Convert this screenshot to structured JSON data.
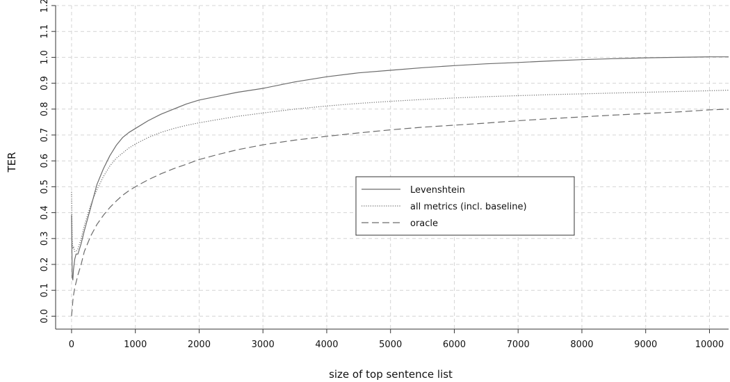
{
  "chart_data": {
    "type": "line",
    "xlabel": "size of top sentence list",
    "ylabel": "TER",
    "xlim": [
      -250,
      10300
    ],
    "ylim": [
      -0.05,
      1.2
    ],
    "x_ticks": [
      0,
      1000,
      2000,
      3000,
      4000,
      5000,
      6000,
      7000,
      8000,
      9000,
      10000
    ],
    "x_tick_labels": [
      "0",
      "1000",
      "2000",
      "3000",
      "4000",
      "5000",
      "6000",
      "7000",
      "8000",
      "9000",
      "10000"
    ],
    "y_ticks": [
      0.0,
      0.1,
      0.2,
      0.3,
      0.4,
      0.5,
      0.6,
      0.7,
      0.8,
      0.9,
      1.0,
      1.1,
      1.2
    ],
    "y_tick_labels": [
      "0.0",
      "0.1",
      "0.2",
      "0.3",
      "0.4",
      "0.5",
      "0.6",
      "0.7",
      "0.8",
      "0.9",
      "1.0",
      "1.1",
      "1.2"
    ],
    "grid": true,
    "legend_position": "center-right",
    "series": [
      {
        "name": "Levenshtein",
        "style": "solid",
        "color": "#6a6a6a",
        "x": [
          0,
          10,
          20,
          30,
          50,
          70,
          100,
          150,
          200,
          300,
          400,
          500,
          600,
          700,
          800,
          900,
          1000,
          1200,
          1400,
          1600,
          1800,
          2000,
          2300,
          2600,
          3000,
          3500,
          4000,
          4500,
          5000,
          5500,
          6000,
          6500,
          7000,
          7500,
          8000,
          8500,
          9000,
          9500,
          10000,
          10300
        ],
        "y": [
          0.39,
          0.15,
          0.14,
          0.18,
          0.22,
          0.24,
          0.24,
          0.28,
          0.33,
          0.42,
          0.51,
          0.57,
          0.62,
          0.66,
          0.69,
          0.71,
          0.725,
          0.755,
          0.78,
          0.8,
          0.82,
          0.835,
          0.85,
          0.865,
          0.88,
          0.905,
          0.925,
          0.94,
          0.95,
          0.96,
          0.968,
          0.975,
          0.98,
          0.986,
          0.991,
          0.995,
          0.998,
          1.0,
          1.002,
          1.002
        ]
      },
      {
        "name": "all metrics (incl. baseline)",
        "style": "dotted",
        "color": "#6a6a6a",
        "x": [
          0,
          10,
          20,
          30,
          50,
          70,
          100,
          150,
          200,
          300,
          400,
          500,
          600,
          700,
          800,
          900,
          1000,
          1200,
          1400,
          1600,
          1800,
          2000,
          2300,
          2600,
          3000,
          3500,
          4000,
          4500,
          5000,
          5500,
          6000,
          6500,
          7000,
          7500,
          8000,
          8500,
          9000,
          9500,
          10000,
          10300
        ],
        "y": [
          0.48,
          0.3,
          0.26,
          0.27,
          0.25,
          0.25,
          0.26,
          0.3,
          0.35,
          0.43,
          0.49,
          0.54,
          0.58,
          0.61,
          0.63,
          0.65,
          0.665,
          0.69,
          0.71,
          0.725,
          0.737,
          0.747,
          0.76,
          0.772,
          0.785,
          0.8,
          0.812,
          0.822,
          0.83,
          0.837,
          0.843,
          0.848,
          0.852,
          0.856,
          0.859,
          0.862,
          0.865,
          0.868,
          0.871,
          0.873
        ]
      },
      {
        "name": "oracle",
        "style": "dashed",
        "color": "#6a6a6a",
        "x": [
          0,
          10,
          20,
          30,
          50,
          70,
          100,
          150,
          200,
          300,
          400,
          500,
          600,
          700,
          800,
          900,
          1000,
          1200,
          1400,
          1600,
          1800,
          2000,
          2300,
          2600,
          3000,
          3500,
          4000,
          4500,
          5000,
          5500,
          6000,
          6500,
          7000,
          7500,
          8000,
          8500,
          9000,
          9500,
          10000,
          10300
        ],
        "y": [
          0.0,
          0.03,
          0.06,
          0.08,
          0.11,
          0.13,
          0.16,
          0.2,
          0.25,
          0.31,
          0.355,
          0.39,
          0.42,
          0.445,
          0.467,
          0.485,
          0.5,
          0.527,
          0.55,
          0.57,
          0.587,
          0.605,
          0.625,
          0.643,
          0.662,
          0.68,
          0.695,
          0.708,
          0.72,
          0.73,
          0.738,
          0.746,
          0.755,
          0.763,
          0.77,
          0.777,
          0.783,
          0.789,
          0.797,
          0.8
        ]
      }
    ]
  }
}
